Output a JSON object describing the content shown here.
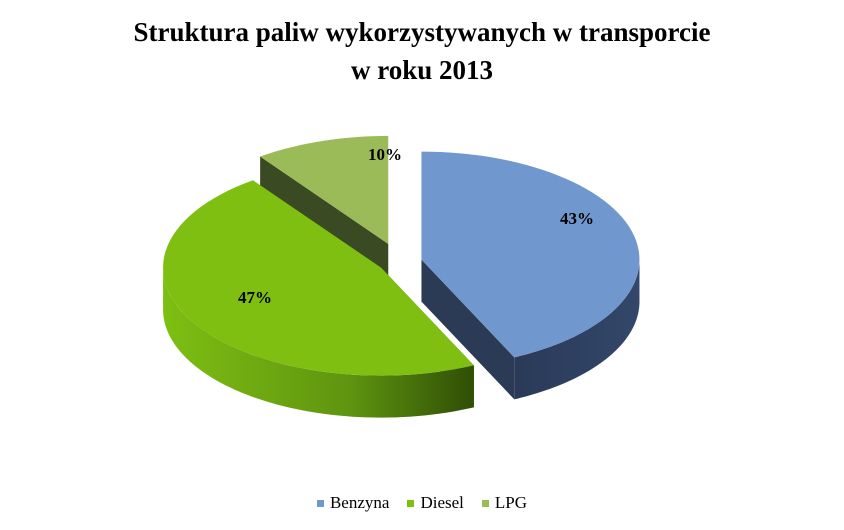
{
  "chart_data": {
    "type": "pie",
    "title_lines": [
      "Struktura paliw wykorzystywanych w transporcie",
      "w roku 2013"
    ],
    "slices": [
      {
        "name": "Benzyna",
        "value": 43,
        "label": "43%",
        "color": "#7098cf",
        "side_color": "#2c3b55"
      },
      {
        "name": "Diesel",
        "value": 47,
        "label": "47%",
        "color": "#7ebf12",
        "side_color": "#4a7a0a"
      },
      {
        "name": "LPG",
        "value": 10,
        "label": "10%",
        "color": "#9bbb59",
        "side_color": "#3a4a22"
      }
    ],
    "style": "3d-exploded",
    "legend_position": "bottom"
  }
}
